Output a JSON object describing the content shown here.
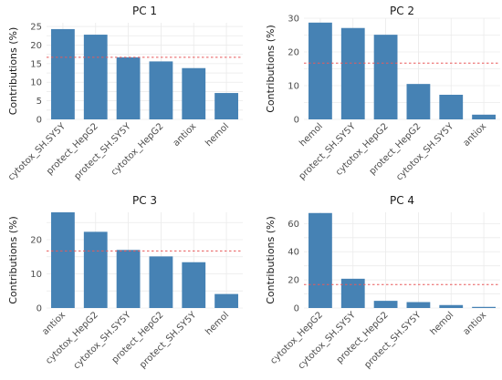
{
  "colors": {
    "bar": "#4682b4",
    "reference_line": "#e8595a",
    "grid": "#ebebeb"
  },
  "chart_data": [
    {
      "type": "bar",
      "title": "PC 1",
      "ylabel": "Contributions (%)",
      "xlabel": "",
      "categories": [
        "cytotox_SH.SY5Y",
        "protect_HepG2",
        "protect_SH.SY5Y",
        "cytotox_HepG2",
        "antiox",
        "hemol"
      ],
      "values": [
        24.3,
        22.8,
        16.7,
        15.6,
        13.8,
        7.1
      ],
      "ylim": [
        0,
        26
      ],
      "yticks": [
        0,
        5,
        10,
        15,
        20,
        25
      ],
      "reference_line": 16.7,
      "grid": true
    },
    {
      "type": "bar",
      "title": "PC 2",
      "ylabel": "Contributions (%)",
      "xlabel": "",
      "categories": [
        "hemol",
        "protect_SH.SY5Y",
        "cytotox_HepG2",
        "protect_HepG2",
        "cytotox_SH.SY5Y",
        "antiox"
      ],
      "values": [
        28.7,
        27.1,
        25.1,
        10.5,
        7.3,
        1.4
      ],
      "ylim": [
        0,
        30
      ],
      "yticks": [
        0,
        10,
        20,
        30
      ],
      "reference_line": 16.7,
      "grid": true
    },
    {
      "type": "bar",
      "title": "PC 3",
      "ylabel": "Contributions (%)",
      "xlabel": "",
      "categories": [
        "antiox",
        "cytotox_HepG2",
        "cytotox_SH.SY5Y",
        "protect_HepG2",
        "protect_SH.SY5Y",
        "hemol"
      ],
      "values": [
        28.0,
        22.3,
        17.0,
        15.1,
        13.4,
        4.1
      ],
      "ylim": [
        0,
        28
      ],
      "yticks": [
        0,
        10,
        20
      ],
      "reference_line": 16.7,
      "grid": true
    },
    {
      "type": "bar",
      "title": "PC 4",
      "ylabel": "Contributions (%)",
      "xlabel": "",
      "categories": [
        "cytotox_HepG2",
        "cytotox_SH.SY5Y",
        "protect_HepG2",
        "protect_SH.SY5Y",
        "hemol",
        "antiox"
      ],
      "values": [
        67.5,
        20.8,
        5.1,
        4.2,
        2.1,
        0.8
      ],
      "ylim": [
        0,
        68
      ],
      "yticks": [
        0,
        20,
        40,
        60
      ],
      "reference_line": 16.7,
      "grid": true
    }
  ]
}
